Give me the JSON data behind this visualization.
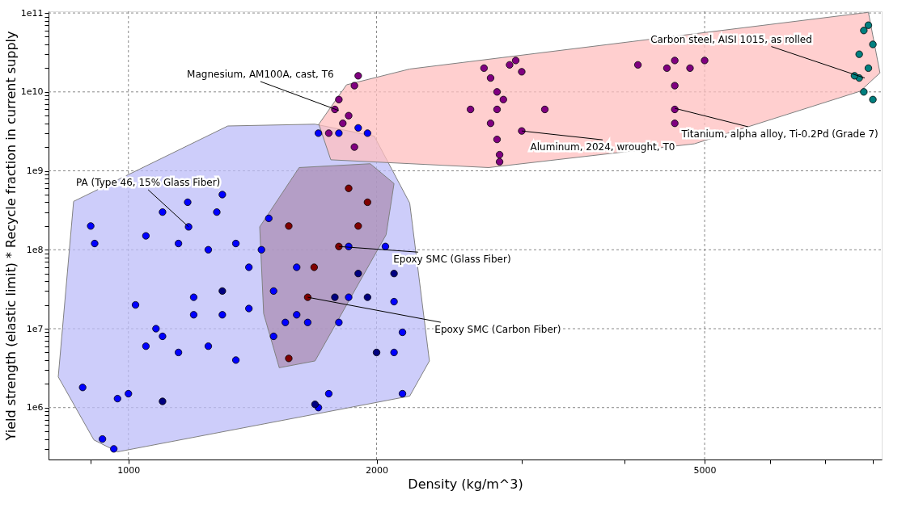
{
  "chart_data": {
    "type": "scatter",
    "xlabel": "Density (kg/m^3)",
    "ylabel": "Yield strength (elastic limit) * Recycle fraction in current supply",
    "log": "xy",
    "grid": true,
    "marker": "circle",
    "xlim": [
      800,
      8200
    ],
    "ylim": [
      220000,
      105000000000
    ],
    "xticks": [
      {
        "value": 900,
        "label": null
      },
      1000,
      2000,
      {
        "value": 3000,
        "label": null
      },
      {
        "value": 4000,
        "label": null
      },
      5000,
      {
        "value": 6000,
        "label": null
      },
      {
        "value": 7000,
        "label": null
      },
      {
        "value": 8000,
        "label": null
      }
    ],
    "yticks": [
      {
        "value": 300000,
        "label": null
      },
      {
        "value": 400000,
        "label": null
      },
      {
        "value": 500000,
        "label": null
      },
      {
        "value": 600000,
        "label": null
      },
      {
        "value": 700000,
        "label": null
      },
      {
        "value": 800000,
        "label": null
      },
      {
        "value": 900000,
        "label": null
      },
      {
        "value": 1000000,
        "label": "1e6"
      },
      {
        "value": 2000000,
        "label": null
      },
      {
        "value": 3000000,
        "label": null
      },
      {
        "value": 4000000,
        "label": null
      },
      {
        "value": 5000000,
        "label": null
      },
      {
        "value": 6000000,
        "label": null
      },
      {
        "value": 7000000,
        "label": null
      },
      {
        "value": 8000000,
        "label": null
      },
      {
        "value": 9000000,
        "label": null
      },
      {
        "value": 10000000,
        "label": "1e7"
      },
      {
        "value": 20000000,
        "label": null
      },
      {
        "value": 30000000,
        "label": null
      },
      {
        "value": 40000000,
        "label": null
      },
      {
        "value": 50000000,
        "label": null
      },
      {
        "value": 60000000,
        "label": null
      },
      {
        "value": 70000000,
        "label": null
      },
      {
        "value": 80000000,
        "label": null
      },
      {
        "value": 90000000,
        "label": null
      },
      {
        "value": 100000000,
        "label": "1e8"
      },
      {
        "value": 200000000,
        "label": null
      },
      {
        "value": 300000000,
        "label": null
      },
      {
        "value": 400000000,
        "label": null
      },
      {
        "value": 500000000,
        "label": null
      },
      {
        "value": 600000000,
        "label": null
      },
      {
        "value": 700000000,
        "label": null
      },
      {
        "value": 800000000,
        "label": null
      },
      {
        "value": 900000000,
        "label": null
      },
      {
        "value": 1000000000,
        "label": "1e9"
      },
      {
        "value": 2000000000,
        "label": null
      },
      {
        "value": 3000000000,
        "label": null
      },
      {
        "value": 4000000000,
        "label": null
      },
      {
        "value": 5000000000,
        "label": null
      },
      {
        "value": 6000000000,
        "label": null
      },
      {
        "value": 7000000000,
        "label": null
      },
      {
        "value": 8000000000,
        "label": null
      },
      {
        "value": 9000000000,
        "label": null
      },
      {
        "value": 10000000000,
        "label": "1e10"
      },
      {
        "value": 20000000000,
        "label": null
      },
      {
        "value": 30000000000,
        "label": null
      },
      {
        "value": 40000000000,
        "label": null
      },
      {
        "value": 50000000000,
        "label": null
      },
      {
        "value": 60000000000,
        "label": null
      },
      {
        "value": 70000000000,
        "label": null
      },
      {
        "value": 80000000000,
        "label": null
      },
      {
        "value": 90000000000,
        "label": null
      },
      {
        "value": 100000000000,
        "label": "1e11"
      }
    ],
    "series": [
      {
        "type": "area",
        "marker": "none",
        "color": "#bcbcf8",
        "x": [
          822,
          858,
          1320,
          1684,
          1987,
          2194,
          2318,
          2194,
          970,
          908
        ],
        "values": [
          2450000,
          410000000,
          3700000000,
          3900000000,
          2750000000,
          390000000,
          3900000,
          1400000,
          275000,
          390000
        ]
      },
      {
        "type": "area",
        "marker": "none",
        "color": "#ffbfbf",
        "x": [
          1702,
          1839,
          2194,
          7900,
          8160,
          7720,
          4860,
          2735,
          1760
        ],
        "values": [
          3900000000,
          12300000000,
          19500000000,
          102000000000,
          17400000000,
          10200000000,
          2200000000,
          1100000000,
          1380000000
        ]
      },
      {
        "type": "area",
        "marker": "none",
        "color": "#ab8eb4",
        "x": [
          1443,
          1611,
          1965,
          2100,
          2054,
          1684,
          1524,
          1459
        ],
        "values": [
          195000000,
          1100000000,
          1230000000,
          690000000,
          155000000,
          3900000,
          3200000,
          15500000
        ]
      },
      {
        "color": "#0000ff",
        "x": [
          880,
          900,
          910,
          930,
          960,
          970,
          1000,
          1020,
          1050,
          1050,
          1080,
          1100,
          1100,
          1150,
          1150,
          1180,
          1200,
          1200,
          1250,
          1250,
          1280,
          1300,
          1350,
          1350,
          1400,
          1400,
          1450,
          1480,
          1500,
          1500,
          1550,
          1600,
          1600,
          1650,
          1700,
          1750,
          1800,
          1800,
          1900,
          1950,
          2050,
          2100,
          2150,
          2150,
          2100,
          1850,
          1300,
          1700,
          1850,
          1183
        ],
        "values": [
          1800000,
          200000000,
          120000000,
          400000,
          300000,
          1300000,
          1500000,
          20000000,
          6000000,
          150000000,
          10000000,
          300000000,
          8000000,
          120000000,
          5000000,
          400000000,
          15000000,
          25000000,
          100000000,
          6000000,
          300000000,
          15000000,
          120000000,
          4000000,
          18000000,
          60000000,
          100000000,
          250000000,
          8000000,
          30000000,
          12000000,
          60000000,
          15000000,
          12000000,
          3000000000,
          1500000,
          12000000,
          3000000000,
          3500000000,
          3000000000,
          110000000,
          5000000,
          9000000,
          1500000,
          22000000,
          25000000,
          500000000,
          1000000,
          110000000,
          195000000
        ]
      },
      {
        "color": "#000080",
        "x": [
          1100,
          1684,
          1780,
          2000,
          1900,
          2100,
          1950,
          1300
        ],
        "values": [
          1200000,
          1100000,
          25000000,
          5000000,
          50000000,
          50000000,
          25000000,
          30000000
        ]
      },
      {
        "color": "#800000",
        "x": [
          1850,
          1950,
          1900,
          1800,
          1680,
          1650,
          1565,
          1565
        ],
        "values": [
          600000000,
          400000000,
          200000000,
          110000000,
          60000000,
          25000000,
          200000000,
          4200000
        ]
      },
      {
        "color": "#800080",
        "x": [
          1750,
          1780,
          1800,
          1820,
          1850,
          1880,
          1900,
          1880,
          2700,
          2750,
          2800,
          2800,
          2750,
          2800,
          2820,
          2820,
          2850,
          2900,
          2950,
          3000,
          3000,
          3200,
          2600,
          4500,
          4600,
          4800,
          5000,
          4600,
          4600,
          4600,
          4150
        ],
        "values": [
          3000000000,
          6000000000,
          8000000000,
          4000000000,
          5000000000,
          12000000000,
          16000000000,
          2000000000,
          20000000000,
          15000000000,
          10000000000,
          6000000000,
          4000000000,
          2500000000,
          1600000000,
          1300000000,
          8000000000,
          22000000000,
          25000000000,
          18000000000,
          3200000000,
          6000000000,
          6000000000,
          20000000000,
          25000000000,
          20000000000,
          25000000000,
          12000000000,
          6000000000,
          4000000000,
          22000000000
        ]
      },
      {
        "color": "#008080",
        "x": [
          7700,
          7800,
          7800,
          7900,
          8000,
          7700,
          7600,
          8000,
          7900
        ],
        "values": [
          30000000000,
          60000000000,
          10000000000,
          20000000000,
          40000000000,
          15000000000,
          16000000000,
          8000000000,
          70000000000
        ]
      }
    ],
    "annotations": [
      {
        "text": "Magnesium, AM100A, cast, T6",
        "x": 1800,
        "y": 5800000000
      },
      {
        "text": "Carbon steel, AISI 1015, as rolled",
        "x": 7820,
        "y": 15000000000
      },
      {
        "text": "Titanium, alpha alloy, Ti-0.2Pd (Grade 7)",
        "x": 4600,
        "y": 6200000000
      },
      {
        "text": "Aluminum, 2024, wrought, T0",
        "x": 3000,
        "y": 3200000000
      },
      {
        "text": "PA (Type 46, 15% Glass Fiber)",
        "x": 1183,
        "y": 195000000
      },
      {
        "text": "Epoxy SMC (Glass Fiber)",
        "x": 1800,
        "y": 110000000
      },
      {
        "text": "Epoxy SMC (Carbon Fiber)",
        "x": 1650,
        "y": 25000000
      }
    ]
  }
}
